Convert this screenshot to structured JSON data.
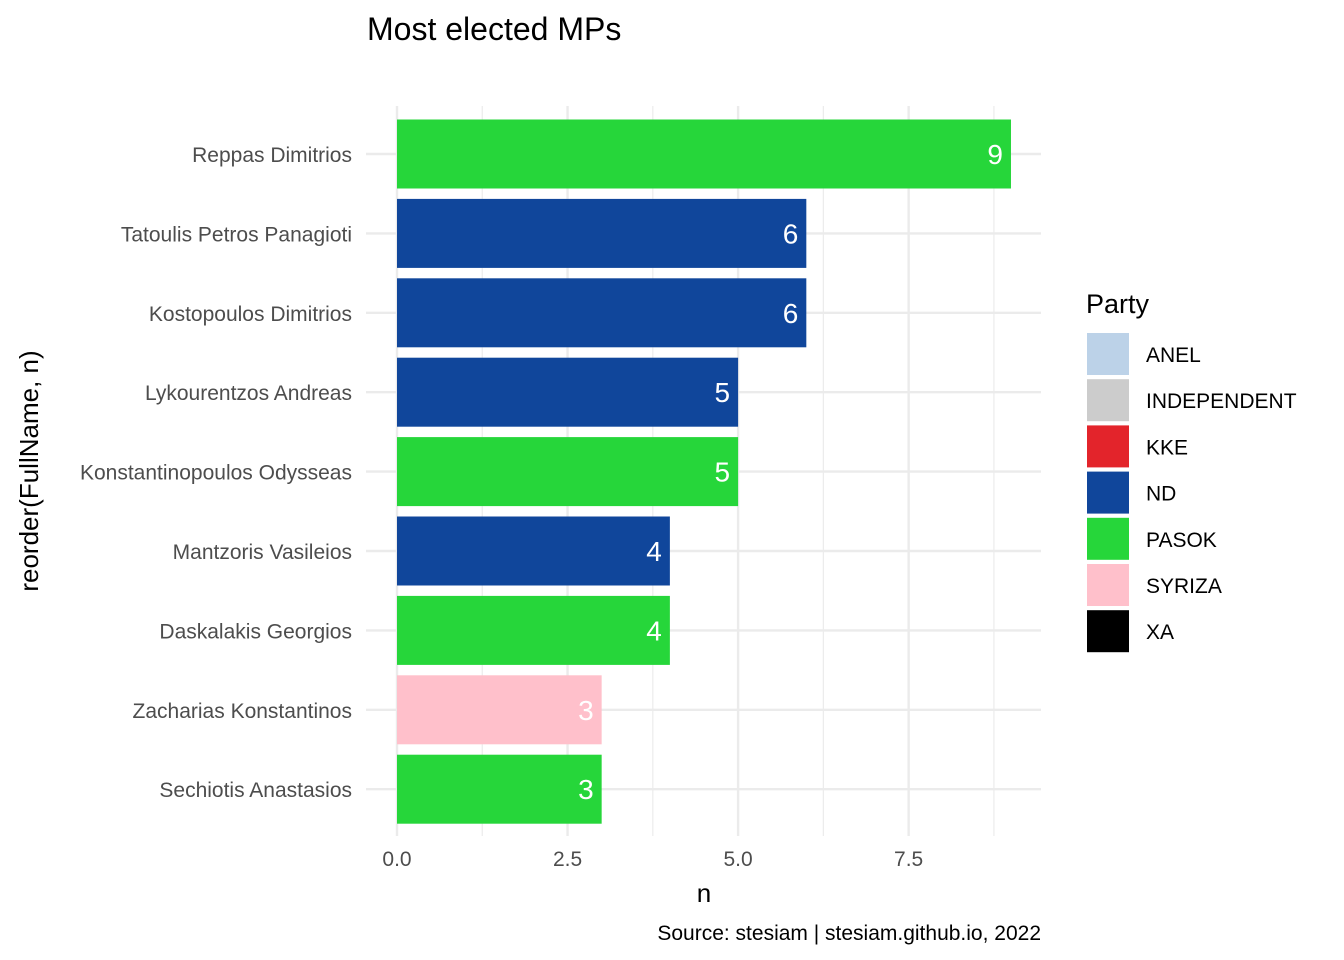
{
  "chart_data": {
    "type": "bar",
    "orientation": "horizontal",
    "title": "Most elected MPs",
    "xlabel": "n",
    "ylabel": "reorder(FullName, n)",
    "caption": "Source: stesiam | stesiam.github.io, 2022",
    "xlim": [
      0,
      9.45
    ],
    "xticks": [
      "0.0",
      "2.5",
      "5.0",
      "7.5"
    ],
    "grid": true,
    "legend": {
      "title": "Party",
      "position": "right",
      "entries": [
        {
          "label": "ANEL",
          "color": "#bcd2e8"
        },
        {
          "label": "INDEPENDENT",
          "color": "#cccccc"
        },
        {
          "label": "KKE",
          "color": "#e3242b"
        },
        {
          "label": "ND",
          "color": "#10469b"
        },
        {
          "label": "PASOK",
          "color": "#26d63a"
        },
        {
          "label": "SYRIZA",
          "color": "#ffc0cb"
        },
        {
          "label": "XA",
          "color": "#000000"
        }
      ]
    },
    "bars": [
      {
        "name": "Reppas Dimitrios",
        "value": 9,
        "party": "PASOK"
      },
      {
        "name": "Tatoulis Petros Panagioti",
        "value": 6,
        "party": "ND"
      },
      {
        "name": "Kostopoulos Dimitrios",
        "value": 6,
        "party": "ND"
      },
      {
        "name": "Lykourentzos Andreas",
        "value": 5,
        "party": "ND"
      },
      {
        "name": "Konstantinopoulos Odysseas",
        "value": 5,
        "party": "PASOK"
      },
      {
        "name": "Mantzoris Vasileios",
        "value": 4,
        "party": "ND"
      },
      {
        "name": "Daskalakis Georgios",
        "value": 4,
        "party": "PASOK"
      },
      {
        "name": "Zacharias Konstantinos",
        "value": 3,
        "party": "SYRIZA"
      },
      {
        "name": "Sechiotis Anastasios",
        "value": 3,
        "party": "PASOK"
      }
    ]
  }
}
